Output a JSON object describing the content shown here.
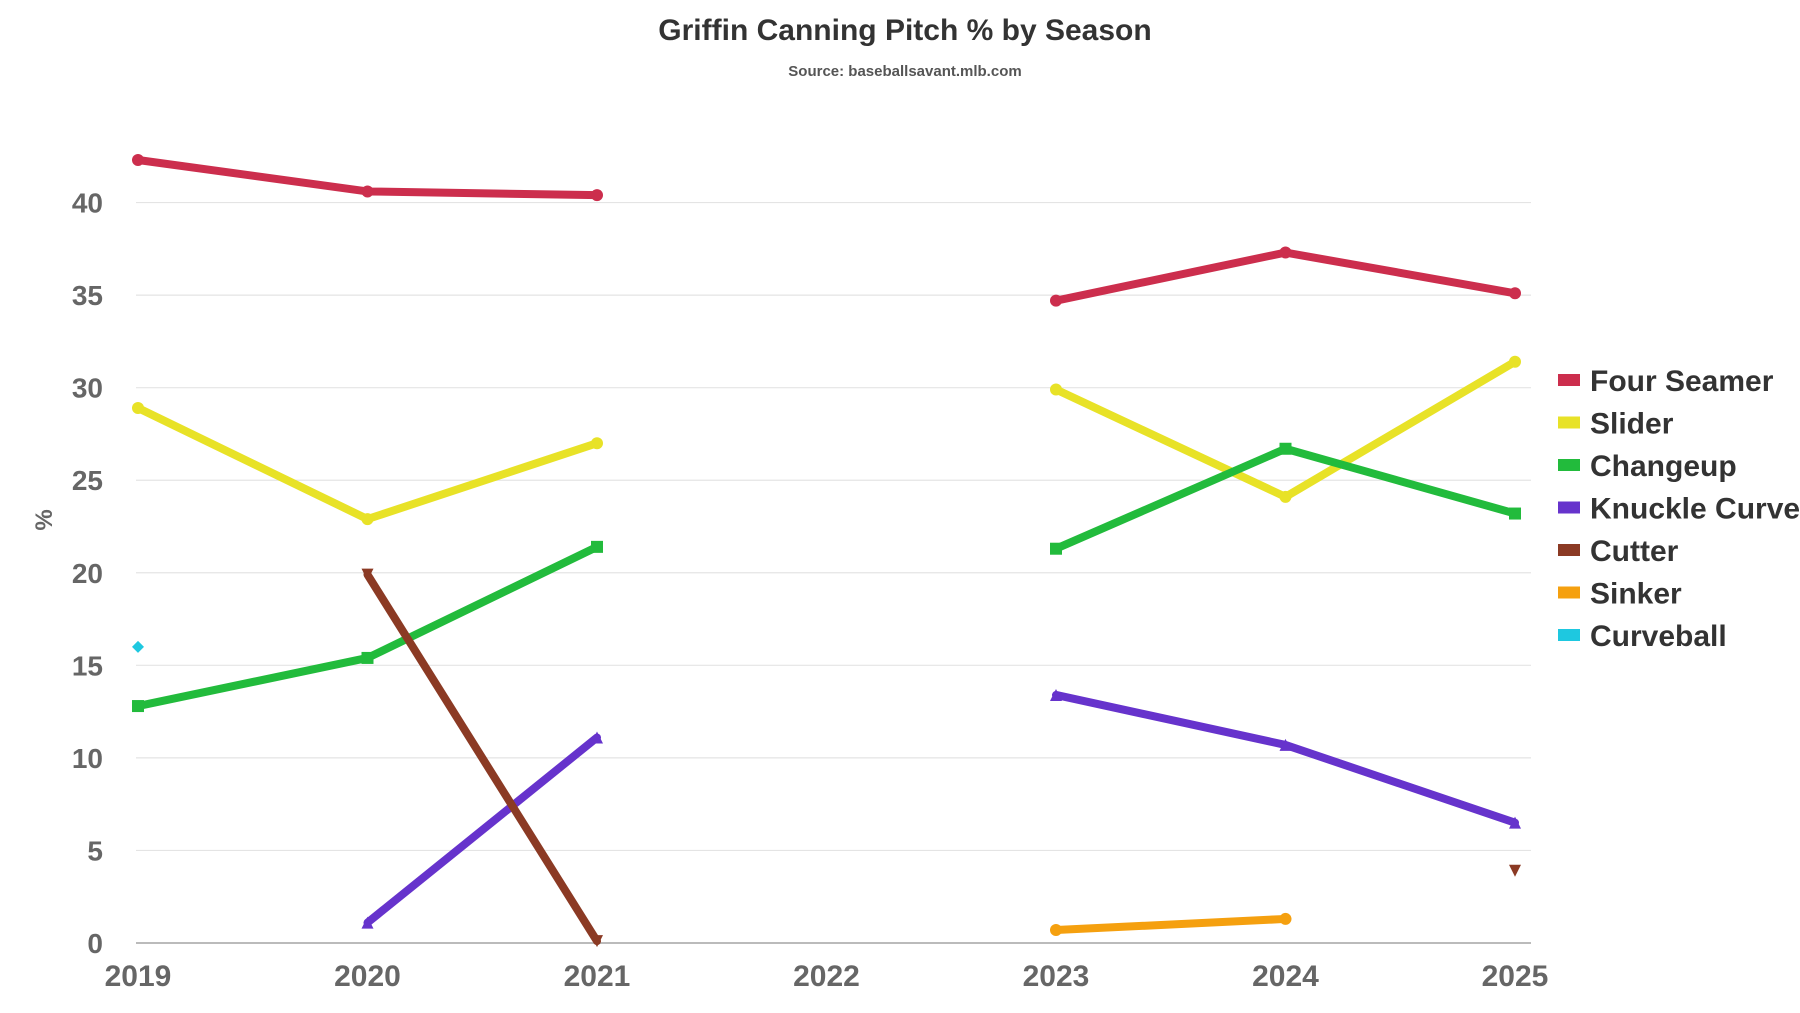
{
  "chart_data": {
    "type": "line",
    "title": "Griffin Canning Pitch % by Season",
    "subtitle": "Source: baseballsavant.mlb.com",
    "xlabel": "",
    "ylabel": "%",
    "x": [
      "2019",
      "2020",
      "2021",
      "2022",
      "2023",
      "2024",
      "2025"
    ],
    "ylim": [
      0,
      45
    ],
    "yticks": [
      "0",
      "5",
      "10",
      "15",
      "20",
      "25",
      "30",
      "35",
      "40"
    ],
    "grid": true,
    "legend_position": "right",
    "series": [
      {
        "name": "Four Seamer",
        "color": "#cc2e4d",
        "marker": "circle",
        "values": [
          42.3,
          40.6,
          40.4,
          null,
          34.7,
          37.3,
          35.1
        ]
      },
      {
        "name": "Slider",
        "color": "#e8e227",
        "marker": "circle",
        "values": [
          28.9,
          22.9,
          27.0,
          null,
          29.9,
          24.1,
          31.4
        ]
      },
      {
        "name": "Changeup",
        "color": "#22bb3c",
        "marker": "square",
        "values": [
          12.8,
          15.4,
          21.4,
          null,
          21.3,
          26.7,
          23.2
        ]
      },
      {
        "name": "Knuckle Curve",
        "color": "#6633cc",
        "marker": "triangle-up",
        "values": [
          null,
          1.1,
          11.1,
          null,
          13.4,
          10.7,
          6.5
        ]
      },
      {
        "name": "Cutter",
        "color": "#8b3a24",
        "marker": "triangle-down",
        "values": [
          null,
          19.9,
          0.1,
          null,
          null,
          null,
          3.9
        ]
      },
      {
        "name": "Sinker",
        "color": "#f5a00f",
        "marker": "circle",
        "values": [
          null,
          null,
          null,
          null,
          0.7,
          1.3,
          null
        ]
      },
      {
        "name": "Curveball",
        "color": "#1ec8e0",
        "marker": "diamond",
        "values": [
          16.0,
          null,
          null,
          null,
          null,
          null,
          null
        ]
      }
    ]
  }
}
